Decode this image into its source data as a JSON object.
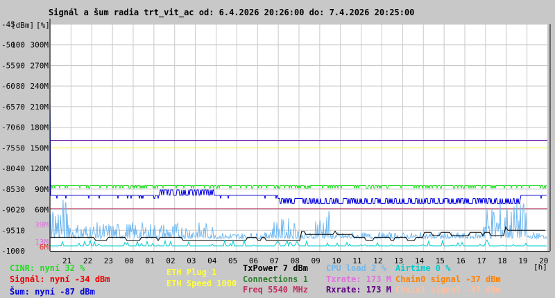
{
  "title": "Signál a šum radia trt_vit_ac od: 6.4.2026 20:26:00 do: 7.4.2026 20:25:00",
  "chart_data": {
    "type": "line",
    "ylim_dbm": [
      -100,
      -45
    ],
    "y_left_label": "[dBm]",
    "y_right_label": "[%]",
    "y_ticks_dbm": [
      "-45",
      "-50",
      "-55",
      "-60",
      "-65",
      "-70",
      "-75",
      "-80",
      "-85",
      "-90",
      "-95",
      "-100"
    ],
    "y_ticks_pct": [
      "",
      "100",
      "90",
      "80",
      "70",
      "60",
      "50",
      "40",
      "30",
      "20",
      "10",
      "0"
    ],
    "y_ticks_rate": [
      "",
      "300M",
      "270M",
      "240M",
      "210M",
      "180M",
      "150M",
      "120M",
      "90M",
      "60M",
      "",
      ""
    ],
    "y_ticks_low": [
      {
        "label": "39M",
        "dbm": -93.6,
        "color": "#e070e0"
      },
      {
        "label": "13M",
        "dbm": -97.8,
        "color": "#e070e0"
      },
      {
        "label": "6M",
        "dbm": -99.0,
        "color": "#e03030"
      }
    ],
    "x_unit": "[h]",
    "x_ticks": [
      "21",
      "22",
      "23",
      "00",
      "01",
      "02",
      "03",
      "04",
      "05",
      "06",
      "07",
      "08",
      "09",
      "10",
      "11",
      "12",
      "13",
      "14",
      "15",
      "16",
      "17",
      "18",
      "19",
      "20"
    ],
    "hlines": [
      {
        "name": "TxPower",
        "dbm": -73.2,
        "color": "#5000a0"
      },
      {
        "name": "ETH Speed",
        "dbm": -75.0,
        "color": "#ffff40"
      },
      {
        "name": "Freq",
        "dbm": -89.7,
        "color": "#c03060"
      }
    ],
    "series": [
      {
        "name": "CINR",
        "color": "#20dd20",
        "base": -84.1,
        "spike_start": -65
      },
      {
        "name": "Šum",
        "color": "#0000dd",
        "base": -86.5,
        "mid": -88.5
      },
      {
        "name": "CPU load",
        "color": "#70b8f0",
        "base": -97.0
      },
      {
        "name": "Connections",
        "color": "#000000",
        "base": -97.5
      },
      {
        "name": "Airtime",
        "color": "#00cccc",
        "base": -98.8
      }
    ]
  },
  "legend": {
    "col1": [
      {
        "text": "CINR: nyní 32 %",
        "color": "#20dd20"
      },
      {
        "text": "Signál: nyní -34 dBm",
        "color": "#ee0000"
      },
      {
        "text": "Šum: nyní -87 dBm",
        "color": "#0000dd"
      }
    ],
    "col2": [
      {
        "text": "ETH Plug 1",
        "color": "#ffff40"
      },
      {
        "text": "ETH Speed 1000",
        "color": "#ffff40"
      }
    ],
    "col3": [
      {
        "text": "TxPower 7 dBm",
        "color": "#000000"
      },
      {
        "text": "Connections 1",
        "color": "#308030"
      },
      {
        "text": "Freq 5540 MHz",
        "color": "#c03060"
      }
    ],
    "col4": [
      {
        "text": "CPU load 2 %",
        "color": "#70b8f0"
      },
      {
        "text": "Txrate: 173 M",
        "color": "#e070e0"
      },
      {
        "text": "Rxrate: 173 M",
        "color": "#600080"
      }
    ],
    "col5": [
      {
        "text": "Airtime 0 %",
        "color": "#00cccc"
      },
      {
        "text": "Chain0 signal -37 dBm",
        "color": "#ff8000"
      },
      {
        "text": "Chain1 signal -37 dBm",
        "color": "#ffc0a0"
      }
    ]
  }
}
